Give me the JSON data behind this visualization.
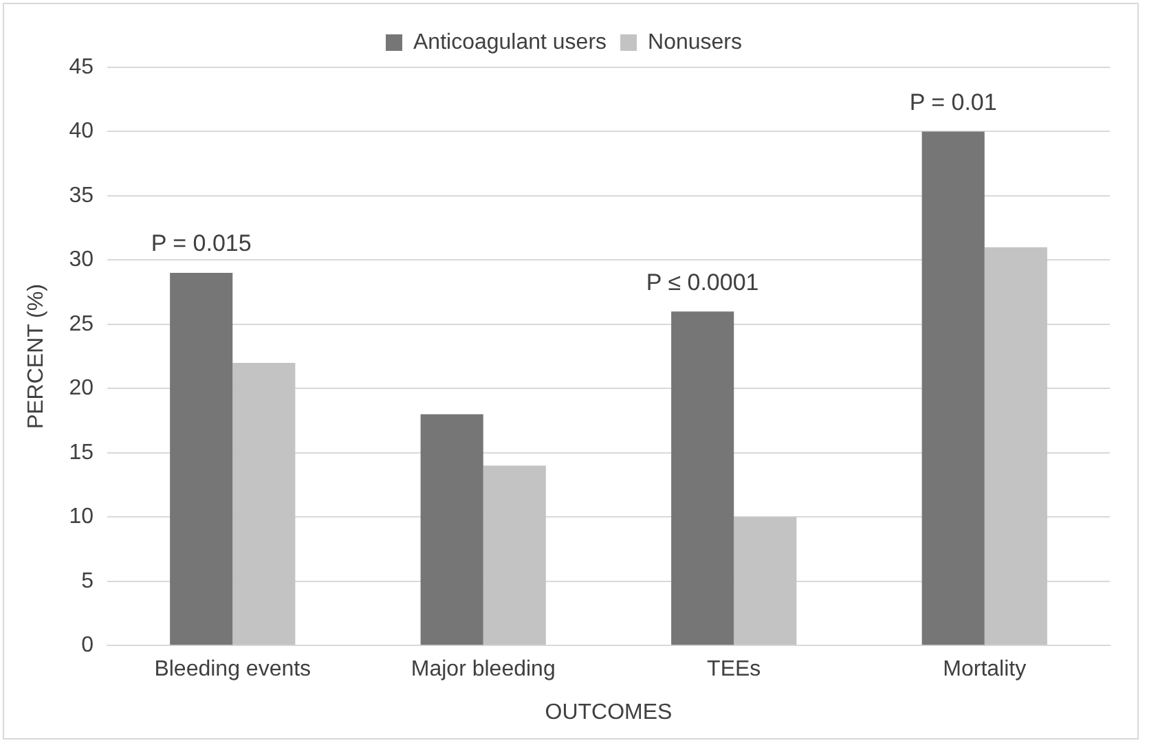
{
  "chart_data": {
    "type": "bar",
    "xlabel": "OUTCOMES",
    "ylabel": "PERCENT (%)",
    "categories": [
      "Bleeding events",
      "Major bleeding",
      "TEEs",
      "Mortality"
    ],
    "series": [
      {
        "name": "Anticoagulant users",
        "color": "#767676",
        "values": [
          29,
          18,
          26,
          40
        ]
      },
      {
        "name": "Nonusers",
        "color": "#c3c3c3",
        "values": [
          22,
          14,
          10,
          31
        ]
      }
    ],
    "ylim": [
      0,
      45
    ],
    "yticks": [
      0,
      5,
      10,
      15,
      20,
      25,
      30,
      35,
      40,
      45
    ],
    "grid": "y",
    "legend": "top",
    "annotations": [
      {
        "text": "P = 0.015",
        "x": "Bleeding events",
        "y": 29
      },
      {
        "text": "P ≤ 0.0001",
        "x": "TEEs",
        "y": 26
      },
      {
        "text": "P = 0.01",
        "x": "Mortality",
        "y": 40
      }
    ]
  }
}
